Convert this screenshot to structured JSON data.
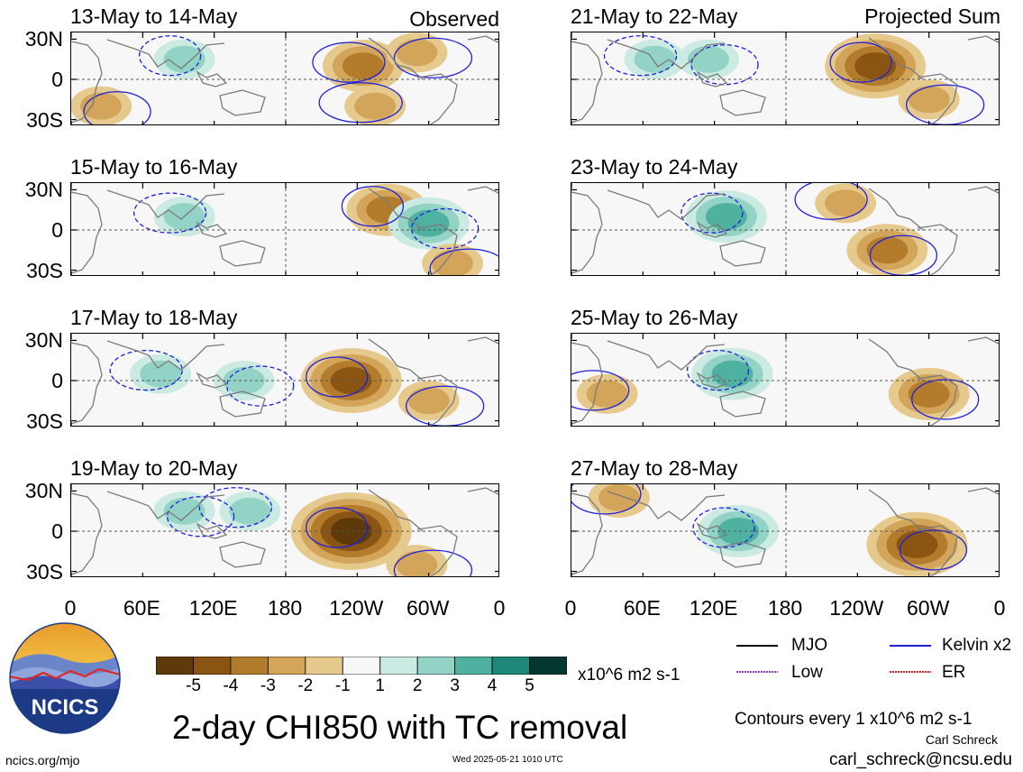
{
  "header": {
    "left_tag": "Observed",
    "right_tag": "Projected Sum"
  },
  "panels": {
    "left": [
      {
        "title": "13-May to 14-May"
      },
      {
        "title": "15-May to 16-May"
      },
      {
        "title": "17-May to 18-May"
      },
      {
        "title": "19-May to 20-May"
      }
    ],
    "right": [
      {
        "title": "21-May to 22-May"
      },
      {
        "title": "23-May to 24-May"
      },
      {
        "title": "25-May to 26-May"
      },
      {
        "title": "27-May to 28-May"
      }
    ]
  },
  "axes": {
    "y_labels": [
      "30N",
      "0",
      "30S"
    ],
    "x_labels": [
      "0",
      "60E",
      "120E",
      "180",
      "120W",
      "60W",
      "0"
    ]
  },
  "colorbar": {
    "labels": [
      "-5",
      "-4",
      "-3",
      "-2",
      "-1",
      "1",
      "2",
      "3",
      "4",
      "5"
    ],
    "colors": [
      "#5e3a0b",
      "#8a5413",
      "#b37b2c",
      "#d2a55a",
      "#e6c98c",
      "#f4ecd3",
      "#f7f7f7",
      "#cbeae2",
      "#92d3c6",
      "#4fb1a0",
      "#1f8878",
      "#0b5f54",
      "#04382f"
    ],
    "units": "x10^6 m2 s-1"
  },
  "legend": [
    {
      "name": "MJO",
      "color": "#000000"
    },
    {
      "name": "Kelvin x2",
      "color": "#1f1fdc"
    },
    {
      "name": "Low",
      "color": "#9a35d6"
    },
    {
      "name": "ER",
      "color": "#e02020"
    }
  ],
  "footer": {
    "main_title": "2-day CHI850 with TC removal",
    "contours_note": "Contours every 1 x10^6 m2 s-1",
    "author": "Carl Schreck",
    "email": "carl_schreck@ncsu.edu",
    "url": "ncics.org/mjo",
    "timestamp": "Wed 2025-05-21 1010 UTC",
    "logo_text": "NCICS"
  },
  "chart_data": {
    "type": "heatmap",
    "variable": "2-day CHI850 with TC removal",
    "units": "x10^6 m2 s-1",
    "contour_interval": 1,
    "x_range": [
      0,
      360
    ],
    "y_range": [
      -35,
      35
    ],
    "x_ticks": [
      "0",
      "60E",
      "120E",
      "180",
      "120W",
      "60W",
      "0"
    ],
    "y_ticks": [
      "30N",
      "0",
      "30S"
    ],
    "color_levels": [
      -5,
      -4,
      -3,
      -2,
      -1,
      1,
      2,
      3,
      4,
      5
    ],
    "panels": [
      {
        "period": "13-May to 14-May",
        "group": "Observed",
        "features": [
          {
            "lon": 95,
            "lat": 15,
            "value": 2
          },
          {
            "lon": 25,
            "lat": -20,
            "value": -1.5
          },
          {
            "lon": 245,
            "lat": 10,
            "value": -3
          },
          {
            "lon": 290,
            "lat": 20,
            "value": -2
          },
          {
            "lon": 255,
            "lat": -20,
            "value": -2
          }
        ]
      },
      {
        "period": "15-May to 16-May",
        "group": "Observed",
        "features": [
          {
            "lon": 265,
            "lat": 15,
            "value": -3
          },
          {
            "lon": 300,
            "lat": 5,
            "value": 3
          },
          {
            "lon": 95,
            "lat": 10,
            "value": 1.5
          },
          {
            "lon": 320,
            "lat": -25,
            "value": -1.5
          }
        ]
      },
      {
        "period": "17-May to 18-May",
        "group": "Observed",
        "features": [
          {
            "lon": 235,
            "lat": 0,
            "value": -4
          },
          {
            "lon": 145,
            "lat": 0,
            "value": 1.5
          },
          {
            "lon": 75,
            "lat": 5,
            "value": 1.5
          },
          {
            "lon": 300,
            "lat": -15,
            "value": -1.5
          }
        ]
      },
      {
        "period": "19-May to 20-May",
        "group": "Observed",
        "features": [
          {
            "lon": 235,
            "lat": 0,
            "value": -5
          },
          {
            "lon": 95,
            "lat": 15,
            "value": 2
          },
          {
            "lon": 150,
            "lat": 15,
            "value": 2
          },
          {
            "lon": 290,
            "lat": -25,
            "value": -2
          }
        ]
      },
      {
        "period": "21-May to 22-May",
        "group": "Projected Sum",
        "features": [
          {
            "lon": 255,
            "lat": 10,
            "value": -4
          },
          {
            "lon": 115,
            "lat": 15,
            "value": 2
          },
          {
            "lon": 70,
            "lat": 15,
            "value": 2
          },
          {
            "lon": 300,
            "lat": -15,
            "value": -2
          }
        ]
      },
      {
        "period": "23-May to 24-May",
        "group": "Projected Sum",
        "features": [
          {
            "lon": 130,
            "lat": 10,
            "value": 3
          },
          {
            "lon": 265,
            "lat": -15,
            "value": -3
          },
          {
            "lon": 230,
            "lat": 20,
            "value": -1.5
          }
        ]
      },
      {
        "period": "25-May to 26-May",
        "group": "Projected Sum",
        "features": [
          {
            "lon": 135,
            "lat": 5,
            "value": 3
          },
          {
            "lon": 300,
            "lat": -10,
            "value": -3
          },
          {
            "lon": 30,
            "lat": -10,
            "value": -1.5
          }
        ]
      },
      {
        "period": "27-May to 28-May",
        "group": "Projected Sum",
        "features": [
          {
            "lon": 140,
            "lat": 0,
            "value": 3
          },
          {
            "lon": 290,
            "lat": -10,
            "value": -4
          },
          {
            "lon": 40,
            "lat": 25,
            "value": -1.5
          }
        ]
      }
    ]
  }
}
